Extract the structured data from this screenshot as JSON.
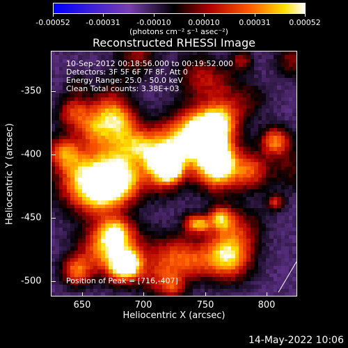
{
  "colorbar": {
    "tick_labels": [
      "-0.00052",
      "-0.00031",
      "-0.00010",
      "0.00010",
      "0.00031",
      "0.00052"
    ],
    "units": "(photons cm⁻² s⁻¹ asec⁻²)",
    "colors": [
      "#0000ff",
      "#7a3fb0",
      "#000000",
      "#b00000",
      "#ff5a00",
      "#ffe000",
      "#ffffff"
    ]
  },
  "title": "Reconstructed RHESSI Image",
  "annotations": {
    "time_range": "10-Sep-2012 00:18:56.000 to 00:19:52.000",
    "detectors": "Detectors: 3F 5F 6F 7F 8F, Att 0",
    "energy_range": "Energy Range: 25.0 - 50.0 keV",
    "algorithm": "Clean     Total counts: 3.38E+03",
    "peak": "Position of Peak = [716,-407]"
  },
  "chart_data": {
    "type": "heatmap",
    "title": "Reconstructed RHESSI Image",
    "xlabel": "Heliocentric X (arcsec)",
    "ylabel": "Heliocentric Y (arcsec)",
    "xlim": [
      628,
      821
    ],
    "ylim": [
      -511,
      -318
    ],
    "x_ticks": [
      "650",
      "700",
      "750",
      "800"
    ],
    "y_ticks": [
      "-350",
      "-400",
      "-450",
      "-500"
    ],
    "peak_position": [
      716,
      -407
    ],
    "colorbar_range": [
      -0.00052,
      0.00052
    ]
  },
  "footer": {
    "date": "14-May-2022 10:06"
  }
}
